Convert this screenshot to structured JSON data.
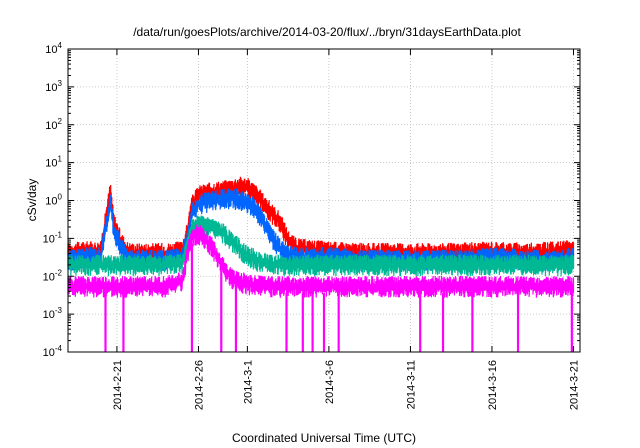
{
  "chart_data": {
    "type": "line",
    "title": "/data/run/goesPlots/archive/2014-03-20/flux/../bryn/31daysEarthData.plot",
    "xlabel": "Coordinated Universal Time (UTC)",
    "ylabel": "cSv/day",
    "yscale": "log",
    "ylim": [
      0.0001,
      10000
    ],
    "xlim": [
      "2014-02-18",
      "2014-03-21"
    ],
    "grid": true,
    "x_ticks": [
      "2014-2-21",
      "2014-2-26",
      "2014-3-1",
      "2014-3-6",
      "2014-3-11",
      "2014-3-16",
      "2014-3-21"
    ],
    "x_tick_days": [
      3,
      8,
      11,
      16,
      21,
      26,
      31
    ],
    "y_ticks": [
      {
        "base": "10",
        "exp": "-4",
        "value": 0.0001
      },
      {
        "base": "10",
        "exp": "-3",
        "value": 0.001
      },
      {
        "base": "10",
        "exp": "-2",
        "value": 0.01
      },
      {
        "base": "10",
        "exp": "-1",
        "value": 0.1
      },
      {
        "base": "10",
        "exp": "0",
        "value": 1
      },
      {
        "base": "10",
        "exp": "1",
        "value": 10
      },
      {
        "base": "10",
        "exp": "2",
        "value": 100
      },
      {
        "base": "10",
        "exp": "3",
        "value": 1000
      },
      {
        "base": "10",
        "exp": "4",
        "value": 10000
      }
    ],
    "series": [
      {
        "color": "#ff0000",
        "x": [
          0,
          1,
          2,
          2.6,
          2.8,
          3.2,
          3.6,
          4,
          5,
          6,
          7,
          7.3,
          7.6,
          8,
          8.5,
          9,
          9.5,
          10,
          10.5,
          11,
          11.5,
          12,
          12.5,
          13,
          13.5,
          14,
          16,
          18,
          20,
          22,
          24,
          26,
          28,
          30,
          31
        ],
        "y": [
          0.045,
          0.05,
          0.05,
          2.0,
          0.3,
          0.1,
          0.05,
          0.045,
          0.045,
          0.045,
          0.05,
          0.15,
          0.8,
          1.5,
          1.7,
          1.9,
          2.0,
          2.2,
          2.6,
          2.4,
          1.6,
          0.9,
          0.5,
          0.3,
          0.1,
          0.06,
          0.05,
          0.045,
          0.045,
          0.045,
          0.045,
          0.05,
          0.045,
          0.05,
          0.055
        ]
      },
      {
        "color": "#0066ff",
        "x": [
          0,
          1,
          2,
          2.6,
          2.8,
          3.2,
          3.6,
          4,
          5,
          6,
          7,
          7.3,
          7.6,
          8,
          8.5,
          9,
          9.5,
          10,
          10.5,
          11,
          11.5,
          12,
          12.5,
          13,
          13.5,
          14,
          16,
          18,
          20,
          22,
          24,
          26,
          28,
          30,
          31
        ],
        "y": [
          0.03,
          0.035,
          0.035,
          1.0,
          0.2,
          0.07,
          0.035,
          0.03,
          0.03,
          0.03,
          0.035,
          0.1,
          0.5,
          0.9,
          1.0,
          1.1,
          1.2,
          1.3,
          1.2,
          0.9,
          0.7,
          0.3,
          0.12,
          0.06,
          0.04,
          0.035,
          0.035,
          0.03,
          0.03,
          0.03,
          0.03,
          0.035,
          0.03,
          0.03,
          0.035
        ]
      },
      {
        "color": "#00b894",
        "x": [
          0,
          2,
          4,
          6,
          7,
          7.3,
          7.6,
          8,
          8.5,
          9,
          9.5,
          10,
          10.5,
          11,
          11.5,
          12,
          13,
          14,
          16,
          20,
          24,
          28,
          31
        ],
        "y": [
          0.022,
          0.022,
          0.022,
          0.022,
          0.025,
          0.07,
          0.2,
          0.25,
          0.22,
          0.2,
          0.15,
          0.1,
          0.06,
          0.04,
          0.03,
          0.025,
          0.022,
          0.022,
          0.022,
          0.022,
          0.022,
          0.022,
          0.022
        ]
      },
      {
        "color": "#ff00ff",
        "x": [
          0,
          2,
          4,
          6,
          7,
          7.3,
          7.6,
          8,
          8.5,
          9,
          9.5,
          10,
          10.5,
          11,
          12,
          14,
          16,
          20,
          24,
          28,
          31
        ],
        "y": [
          0.006,
          0.006,
          0.006,
          0.006,
          0.008,
          0.04,
          0.12,
          0.15,
          0.1,
          0.05,
          0.02,
          0.01,
          0.008,
          0.007,
          0.006,
          0.006,
          0.006,
          0.006,
          0.006,
          0.006,
          0.006
        ]
      }
    ],
    "dropout_days": [
      2.3,
      3.4,
      7.6,
      9.4,
      10.3,
      13.4,
      14.4,
      15.0,
      15.7,
      16.6,
      21.6,
      23.0,
      24.8,
      27.6,
      30.9
    ]
  }
}
